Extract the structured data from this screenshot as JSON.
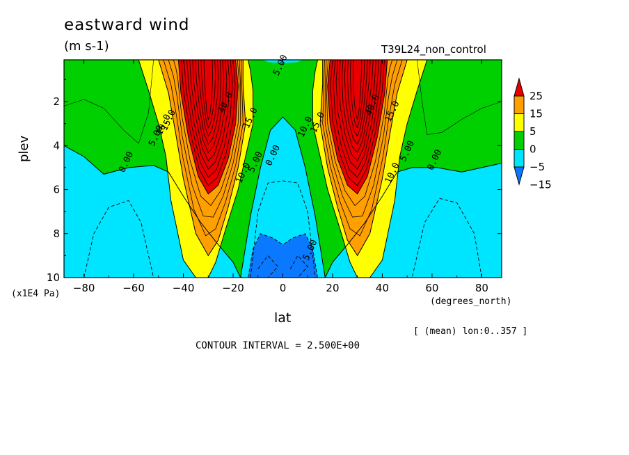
{
  "chart_data": {
    "type": "heatmap",
    "title": "eastward wind",
    "units": "(m s-1)",
    "run_label": "T39L24_non_control",
    "xlabel": "lat",
    "x_units": "(degrees_north)",
    "ylabel": "plev",
    "y_multiplier": "(x1E4 Pa)",
    "averaging_note": "[ (mean) lon:0..357 ]",
    "contour_interval": "CONTOUR INTERVAL = 2.500E+00",
    "xlim": [
      -88,
      88
    ],
    "ylim": [
      10,
      0.1
    ],
    "x_ticks": [
      -80,
      -60,
      -40,
      -20,
      0,
      20,
      40,
      60,
      80
    ],
    "x_tick_labels": [
      "−80",
      "−60",
      "−40",
      "−20",
      "0",
      "20",
      "40",
      "60",
      "80"
    ],
    "y_ticks": [
      2,
      4,
      6,
      8,
      10
    ],
    "y_tick_labels": [
      "2",
      "4",
      "6",
      "8",
      "10"
    ],
    "legend": {
      "labels": [
        "25",
        "15",
        "5",
        "0",
        "−5",
        "−15"
      ],
      "colors": [
        "#0a78ff",
        "#00e5ff",
        "#00d000",
        "#ffff00",
        "#ff9f00",
        "#e80000"
      ],
      "boundaries": [
        -15,
        -5,
        0,
        5,
        15,
        25
      ]
    },
    "jets": [
      {
        "lat": -30,
        "plev": 1.7,
        "max": 40
      },
      {
        "lat": 30,
        "plev": 1.7,
        "max": 40
      }
    ],
    "contour_labels": [
      {
        "text": "40.0",
        "lat": -22.0,
        "plev": 2.1
      },
      {
        "text": "15.0",
        "lat": -12.0,
        "plev": 2.8
      },
      {
        "text": "15.0",
        "lat": -45.0,
        "plev": 2.9
      },
      {
        "text": "10.0",
        "lat": -47.0,
        "plev": 3.1
      },
      {
        "text": "5.00",
        "lat": -50.0,
        "plev": 3.6
      },
      {
        "text": "0.00",
        "lat": -62.0,
        "plev": 4.8
      },
      {
        "text": "10.0",
        "lat": -15.0,
        "plev": 5.3
      },
      {
        "text": "5.00",
        "lat": -10.0,
        "plev": 4.8
      },
      {
        "text": "0.00",
        "lat": -3.0,
        "plev": 4.5
      },
      {
        "text": "5.00",
        "lat": 0.0,
        "plev": 0.4
      },
      {
        "text": "10.0",
        "lat": 10.0,
        "plev": 3.2
      },
      {
        "text": "15.0",
        "lat": 15.0,
        "plev": 3.0
      },
      {
        "text": "40.0",
        "lat": 37.0,
        "plev": 2.2
      },
      {
        "text": "15.0",
        "lat": 45.0,
        "plev": 2.5
      },
      {
        "text": "10.0",
        "lat": 45.0,
        "plev": 5.3
      },
      {
        "text": "5.00",
        "lat": 51.0,
        "plev": 4.3
      },
      {
        "text": "0.00",
        "lat": 62.0,
        "plev": 4.7
      },
      {
        "text": "5.00",
        "lat": 12.0,
        "plev": 8.8
      }
    ]
  },
  "colors": {
    "neg15": "#0a78ff",
    "neg5": "#00e5ff",
    "zero": "#00d000",
    "pos5": "#ffff00",
    "pos15": "#ff9f00",
    "pos25": "#e80000"
  }
}
